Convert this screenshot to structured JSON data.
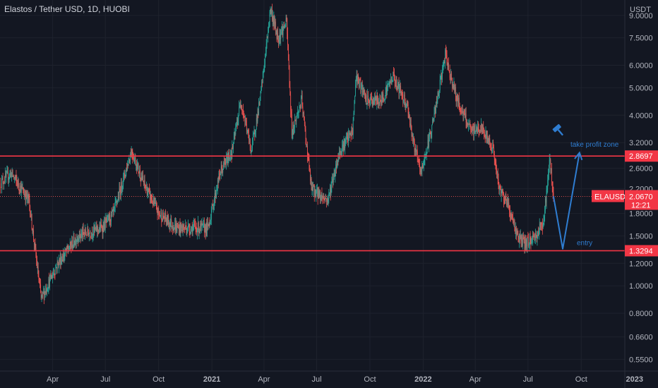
{
  "title": "Elastos / Tether USD, 1D, HUOBI",
  "chart_data": {
    "type": "candlestick",
    "title": "Elastos / Tether USD, 1D, HUOBI",
    "y_unit": "USDT",
    "y_scale": "log",
    "ylim": [
      0.5,
      10.2
    ],
    "y_ticks": [
      "9.0000",
      "7.5000",
      "6.0000",
      "5.0000",
      "4.0000",
      "3.2000",
      "2.6000",
      "2.2000",
      "1.8000",
      "1.5000",
      "1.2000",
      "1.0000",
      "0.8000",
      "0.6600",
      "0.5500"
    ],
    "x_ticks": [
      "Apr",
      "Jul",
      "Oct",
      "2021",
      "Apr",
      "Jul",
      "Oct",
      "2022",
      "Apr",
      "Jul",
      "Oct",
      "2023"
    ],
    "price_path": [
      [
        "2020-01-01",
        2.3
      ],
      [
        "2020-01-20",
        2.5
      ],
      [
        "2020-02-20",
        2.0
      ],
      [
        "2020-03-12",
        0.9
      ],
      [
        "2020-04-10",
        1.2
      ],
      [
        "2020-05-15",
        1.5
      ],
      [
        "2020-06-25",
        1.6
      ],
      [
        "2020-07-15",
        1.8
      ],
      [
        "2020-08-15",
        3.0
      ],
      [
        "2020-09-05",
        2.3
      ],
      [
        "2020-10-01",
        1.8
      ],
      [
        "2020-11-01",
        1.6
      ],
      [
        "2020-12-01",
        1.6
      ],
      [
        "2020-12-25",
        1.6
      ],
      [
        "2021-01-15",
        2.5
      ],
      [
        "2021-02-05",
        3.0
      ],
      [
        "2021-02-20",
        4.5
      ],
      [
        "2021-03-10",
        3.0
      ],
      [
        "2021-03-25",
        4.5
      ],
      [
        "2021-04-05",
        7.0
      ],
      [
        "2021-04-12",
        9.5
      ],
      [
        "2021-04-25",
        7.5
      ],
      [
        "2021-05-10",
        8.5
      ],
      [
        "2021-05-19",
        3.5
      ],
      [
        "2021-06-05",
        4.5
      ],
      [
        "2021-06-22",
        2.2
      ],
      [
        "2021-07-20",
        2.0
      ],
      [
        "2021-08-10",
        3.0
      ],
      [
        "2021-09-01",
        3.5
      ],
      [
        "2021-09-07",
        5.5
      ],
      [
        "2021-09-25",
        4.5
      ],
      [
        "2021-10-20",
        4.5
      ],
      [
        "2021-11-10",
        5.5
      ],
      [
        "2021-12-05",
        4.3
      ],
      [
        "2021-12-15",
        3.2
      ],
      [
        "2021-12-28",
        2.5
      ],
      [
        "2022-01-10",
        3.2
      ],
      [
        "2022-01-25",
        4.5
      ],
      [
        "2022-02-08",
        6.5
      ],
      [
        "2022-03-01",
        4.5
      ],
      [
        "2022-03-25",
        3.5
      ],
      [
        "2022-04-10",
        3.6
      ],
      [
        "2022-05-01",
        3.1
      ],
      [
        "2022-05-12",
        2.2
      ],
      [
        "2022-05-25",
        2.0
      ],
      [
        "2022-06-13",
        1.5
      ],
      [
        "2022-06-25",
        1.4
      ],
      [
        "2022-07-15",
        1.5
      ],
      [
        "2022-07-28",
        1.7
      ],
      [
        "2022-08-08",
        2.8
      ],
      [
        "2022-08-14",
        2.07
      ]
    ],
    "annotations": {
      "resistance": 2.8697,
      "support": 1.3294,
      "last_price": 2.067,
      "projection": [
        [
          "2022-08-14",
          2.07
        ],
        [
          "2022-08-30",
          1.35
        ],
        [
          "2022-09-28",
          2.95
        ]
      ],
      "take_profit_label": "take profit zone",
      "entry_label": "entry"
    }
  },
  "price_tags": {
    "resistance": "2.8697",
    "support": "1.3294",
    "symbol": "ELAUSDT",
    "last": "2.0670",
    "countdown": "12:21"
  },
  "colors": {
    "background": "#131722",
    "up": "#26a69a",
    "down": "#ef5350",
    "level_line": "#f23645",
    "annotation": "#2f7dd1",
    "grid": "#1e222d",
    "axis_text": "#b2b5be"
  },
  "icons": {
    "gavel": "gavel-icon"
  }
}
